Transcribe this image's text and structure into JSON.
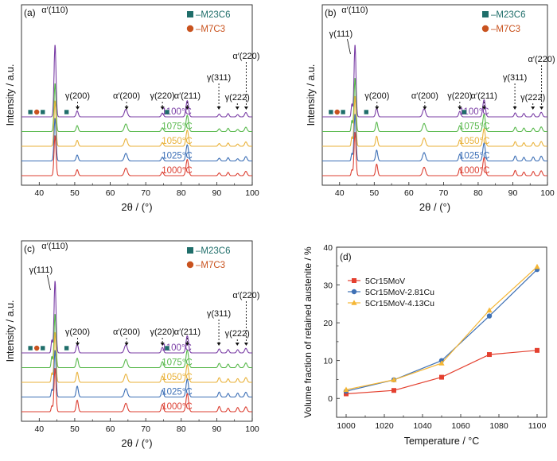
{
  "chart_data": [
    {
      "type": "line",
      "panel_label": "(a)",
      "xlabel": "2θ / (°)",
      "ylabel": "Intensity / a.u.",
      "xlim": [
        35,
        100
      ],
      "x_ticks": [
        "40",
        "50",
        "60",
        "70",
        "80",
        "90",
        "100"
      ],
      "legend": [
        "–M23C6",
        "–M7C3"
      ],
      "series": [
        {
          "name": "1100°C",
          "color": "#7b3fa6"
        },
        {
          "name": "1075°C",
          "color": "#59b94d"
        },
        {
          "name": "1050°C",
          "color": "#e9b23a"
        },
        {
          "name": "1025°C",
          "color": "#3c6fb6"
        },
        {
          "name": "1000°C",
          "color": "#dc4033"
        }
      ],
      "annotations": [
        {
          "text": "α′(110)",
          "x": 44.4
        },
        {
          "text": "γ(200)",
          "x": 50.8
        },
        {
          "text": "α′(200)",
          "x": 64.6
        },
        {
          "text": "γ(220)",
          "x": 74.7
        },
        {
          "text": "α′(211)",
          "x": 81.7
        },
        {
          "text": "γ(311)",
          "x": 90.6
        },
        {
          "text": "γ(222)",
          "x": 95.8
        },
        {
          "text": "α′(220)",
          "x": 98.3
        }
      ]
    },
    {
      "type": "line",
      "panel_label": "(b)",
      "xlabel": "2θ / (°)",
      "ylabel": "Intensity / a.u.",
      "xlim": [
        35,
        100
      ],
      "x_ticks": [
        "40",
        "50",
        "60",
        "70",
        "80",
        "90",
        "100"
      ],
      "legend": [
        "–M23C6",
        "–M7C3"
      ],
      "series": [
        {
          "name": "1100°C",
          "color": "#7b3fa6"
        },
        {
          "name": "1075°C",
          "color": "#59b94d"
        },
        {
          "name": "1050°C",
          "color": "#e9b23a"
        },
        {
          "name": "1025°C",
          "color": "#3c6fb6"
        },
        {
          "name": "1000°C",
          "color": "#dc4033"
        }
      ],
      "annotations": [
        {
          "text": "γ(111)",
          "x": 43.6
        },
        {
          "text": "α′(110)",
          "x": 44.4
        },
        {
          "text": "γ(200)",
          "x": 50.8
        },
        {
          "text": "α′(200)",
          "x": 64.6
        },
        {
          "text": "γ(220)",
          "x": 74.7
        },
        {
          "text": "α′(211)",
          "x": 81.7
        },
        {
          "text": "γ(311)",
          "x": 90.6
        },
        {
          "text": "γ(222)",
          "x": 95.8
        },
        {
          "text": "α′(220)",
          "x": 98.3
        }
      ]
    },
    {
      "type": "line",
      "panel_label": "(c)",
      "xlabel": "2θ / (°)",
      "ylabel": "Intensity / a.u.",
      "xlim": [
        35,
        100
      ],
      "x_ticks": [
        "40",
        "50",
        "60",
        "70",
        "80",
        "90",
        "100"
      ],
      "legend": [
        "–M23C6",
        "–M7C3"
      ],
      "series": [
        {
          "name": "1100°C",
          "color": "#7b3fa6"
        },
        {
          "name": "1075°C",
          "color": "#59b94d"
        },
        {
          "name": "1050°C",
          "color": "#e9b23a"
        },
        {
          "name": "1025°C",
          "color": "#3c6fb6"
        },
        {
          "name": "1000°C",
          "color": "#dc4033"
        }
      ],
      "annotations": [
        {
          "text": "γ(111)",
          "x": 43.6
        },
        {
          "text": "α′(110)",
          "x": 44.4
        },
        {
          "text": "γ(200)",
          "x": 50.8
        },
        {
          "text": "α′(200)",
          "x": 64.6
        },
        {
          "text": "γ(220)",
          "x": 74.7
        },
        {
          "text": "α′(211)",
          "x": 81.7
        },
        {
          "text": "γ(311)",
          "x": 90.6
        },
        {
          "text": "γ(222)",
          "x": 95.8
        },
        {
          "text": "α′(220)",
          "x": 98.3
        }
      ]
    },
    {
      "type": "line",
      "panel_label": "(d)",
      "xlabel": "Temperature / °C",
      "ylabel": "Volume fraction of retained austenite / %",
      "xlim": [
        995,
        1105
      ],
      "ylim": [
        -5,
        40
      ],
      "x_ticks": [
        1000,
        1020,
        1040,
        1060,
        1080,
        1100
      ],
      "y_ticks": [
        0,
        10,
        20,
        30,
        40
      ],
      "legend_position": "top-left",
      "x": [
        1000,
        1025,
        1050,
        1075,
        1100
      ],
      "series": [
        {
          "name": "5Cr15MoV",
          "color": "#e4402f",
          "marker": "square",
          "values": [
            1.2,
            2.1,
            5.6,
            11.6,
            12.7
          ]
        },
        {
          "name": "5Cr15MoV-2.81Cu",
          "color": "#3f71b5",
          "marker": "circle",
          "values": [
            1.9,
            4.9,
            10.0,
            21.8,
            34.1
          ]
        },
        {
          "name": "5Cr15MoV-4.13Cu",
          "color": "#f5b634",
          "marker": "triangle",
          "values": [
            2.3,
            4.9,
            9.3,
            23.3,
            34.8
          ]
        }
      ]
    }
  ]
}
